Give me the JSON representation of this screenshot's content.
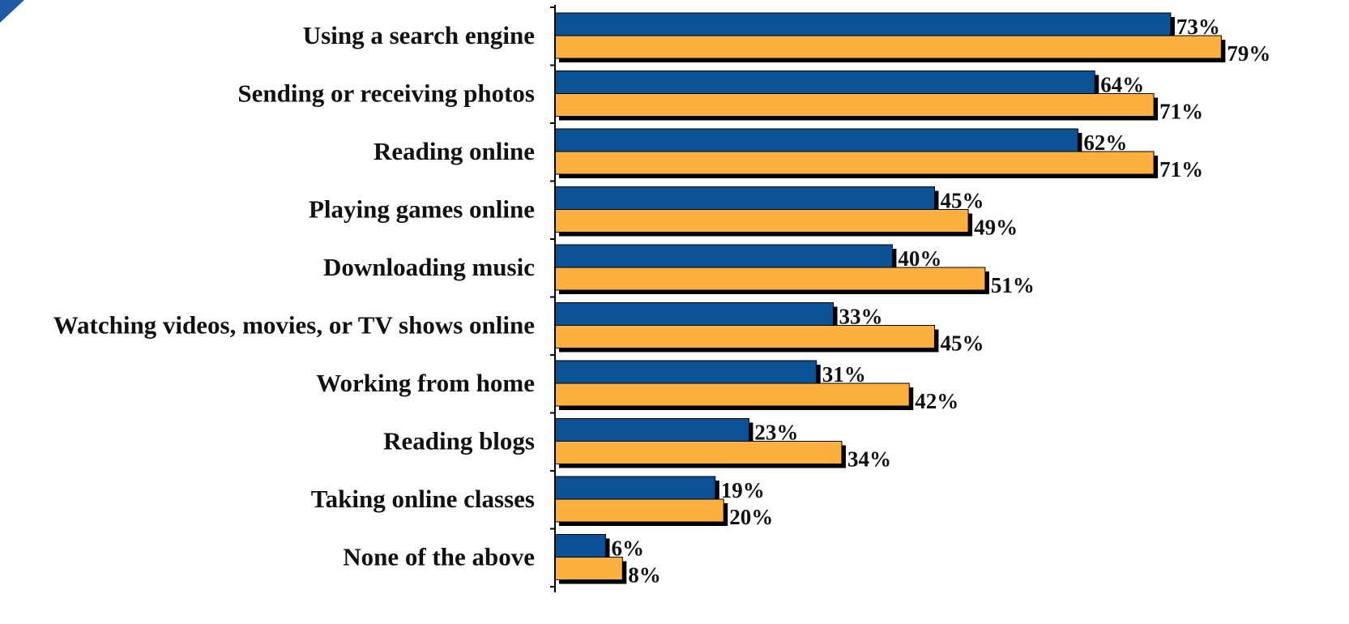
{
  "colors": {
    "series_1": "#0b5195",
    "series_2": "#fbb040",
    "shadow": "#000000",
    "axis": "#000000",
    "corner_accent": "#1f5aa6"
  },
  "chart_data": {
    "type": "bar",
    "orientation": "horizontal",
    "categories": [
      "Using a search engine",
      "Sending or receiving photos",
      "Reading online",
      "Playing games online",
      "Downloading music",
      "Watching videos, movies, or TV shows online",
      "Working from home",
      "Reading blogs",
      "Taking online classes",
      "None of the above"
    ],
    "series": [
      {
        "values": [
          73,
          64,
          62,
          45,
          40,
          33,
          31,
          23,
          19,
          6
        ],
        "labels": [
          "73%",
          "64%",
          "62%",
          "45%",
          "40%",
          "33%",
          "31%",
          "23%",
          "19%",
          "6%"
        ]
      },
      {
        "values": [
          79,
          71,
          71,
          49,
          51,
          45,
          42,
          34,
          20,
          8
        ],
        "labels": [
          "79%",
          "71%",
          "71%",
          "49%",
          "51%",
          "45%",
          "42%",
          "34%",
          "20%",
          "8%"
        ]
      }
    ],
    "xlim": [
      0,
      80
    ],
    "grid": false,
    "value_unit": "%"
  }
}
